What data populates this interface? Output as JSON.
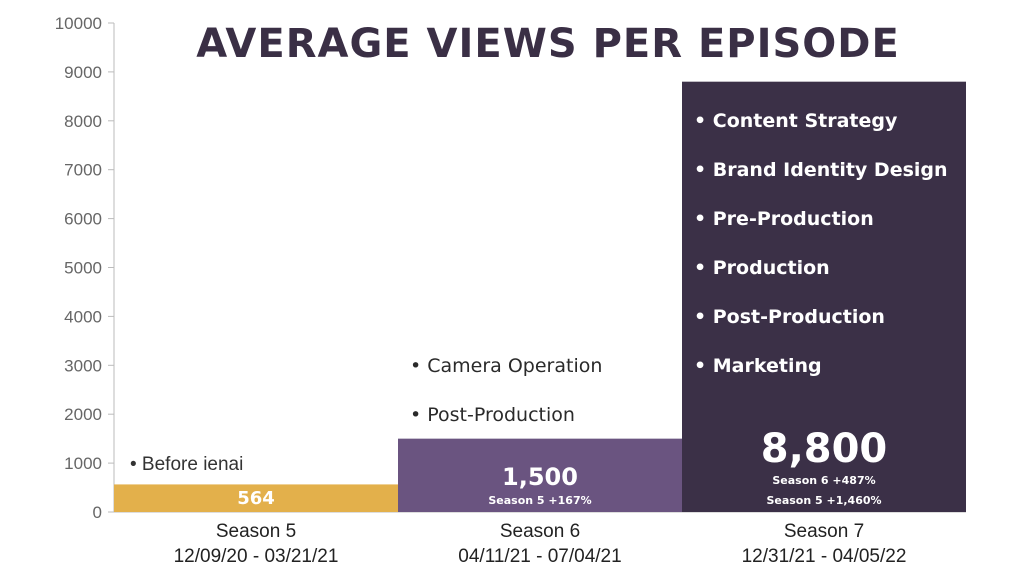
{
  "chart_data": {
    "type": "bar",
    "title": "AVERAGE VIEWS PER EPISODE",
    "ylim": [
      0,
      10000
    ],
    "yticks": [
      0,
      1000,
      2000,
      3000,
      4000,
      5000,
      6000,
      7000,
      8000,
      9000,
      10000
    ],
    "grid": false,
    "categories": [
      {
        "name": "Season 5",
        "dates": "12/09/20 - 03/21/21"
      },
      {
        "name": "Season 6",
        "dates": "04/11/21 - 07/04/21"
      },
      {
        "name": "Season 7",
        "dates": "12/31/21 - 04/05/22"
      }
    ],
    "values": [
      564,
      1500,
      8800
    ],
    "value_labels": [
      "564",
      "1,500",
      "8,800"
    ],
    "bar_colors": [
      "#e3b04b",
      "#6a5480",
      "#3b3047"
    ],
    "growth_labels": [
      [],
      [
        "Season 5 +167%"
      ],
      [
        "Season 6 +487%",
        "Season 5 +1,460%"
      ]
    ],
    "annotations": [
      [
        "• Before ienai"
      ],
      [
        "• Camera Operation",
        "• Post-Production"
      ],
      [
        "• Content Strategy",
        "• Brand Identity Design",
        "• Pre-Production",
        "• Production",
        "• Post-Production",
        "• Marketing"
      ]
    ]
  }
}
